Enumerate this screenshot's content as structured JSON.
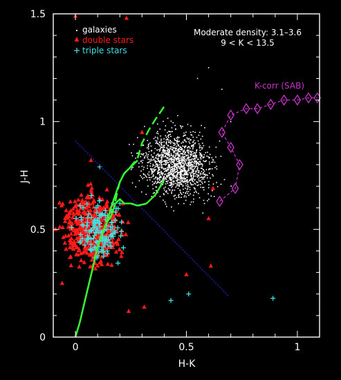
{
  "chart_data": {
    "type": "scatter",
    "xlabel": "H-K",
    "ylabel": "J-H",
    "xlim": [
      -0.1,
      1.1
    ],
    "ylim": [
      0,
      1.5
    ],
    "x_ticks": [
      0,
      0.5,
      1
    ],
    "x_tick_labels": [
      "0",
      "0.5",
      "1"
    ],
    "y_ticks": [
      0,
      0.5,
      1,
      1.5
    ],
    "y_tick_labels": [
      "0",
      "0.5",
      "1",
      "1.5"
    ],
    "annotation_lines": [
      "Moderate density: 3.1–3.6",
      "9 < K < 13.5"
    ],
    "legend_position": "top-left",
    "kcorr_label": "K-corr (SAB)",
    "colors": {
      "background": "#000000",
      "axes": "#ffffff",
      "galaxies": "#ffffff",
      "double_stars": "#ff1a1a",
      "triple_stars": "#40e0e0",
      "kcorr": "#cc33cc",
      "tracks": "#33ff33",
      "reddening": "#1a1a8c"
    },
    "series": [
      {
        "name": "galaxies",
        "marker": "dot",
        "cloud": {
          "center": [
            0.46,
            0.8
          ],
          "spread": [
            0.13,
            0.12
          ],
          "count": 1500
        },
        "values": [
          [
            0.55,
            1.2
          ],
          [
            0.6,
            1.25
          ],
          [
            0.66,
            1.15
          ],
          [
            0.7,
            1.0
          ],
          [
            0.52,
            0.98
          ]
        ]
      },
      {
        "name": "double stars",
        "marker": "triangle",
        "cloud": {
          "center": [
            0.08,
            0.5
          ],
          "spread": [
            0.1,
            0.13
          ],
          "count": 520
        },
        "values": [
          [
            0.0,
            1.49
          ],
          [
            0.23,
            1.48
          ],
          [
            0.07,
            0.82
          ],
          [
            0.3,
            0.95
          ],
          [
            0.6,
            0.55
          ],
          [
            0.61,
            0.33
          ],
          [
            0.31,
            0.14
          ],
          [
            0.24,
            0.12
          ],
          [
            -0.06,
            0.25
          ],
          [
            -0.09,
            0.5
          ],
          [
            0.5,
            0.29
          ],
          [
            0.62,
            0.69
          ]
        ]
      },
      {
        "name": "triple stars",
        "marker": "plus",
        "cloud": {
          "center": [
            0.11,
            0.5
          ],
          "spread": [
            0.08,
            0.11
          ],
          "count": 150
        },
        "values": [
          [
            0.89,
            0.18
          ],
          [
            0.51,
            0.2
          ],
          [
            0.11,
            0.79
          ],
          [
            0.43,
            0.17
          ],
          [
            0.07,
            0.43
          ],
          [
            0.14,
            0.5
          ]
        ]
      }
    ],
    "tracks": [
      {
        "style": "solid",
        "points": [
          [
            0.0,
            0.0
          ],
          [
            0.02,
            0.07
          ],
          [
            0.05,
            0.2
          ],
          [
            0.08,
            0.33
          ],
          [
            0.1,
            0.42
          ],
          [
            0.12,
            0.48
          ],
          [
            0.14,
            0.53
          ],
          [
            0.16,
            0.56
          ],
          [
            0.17,
            0.59
          ],
          [
            0.18,
            0.62
          ],
          [
            0.2,
            0.64
          ],
          [
            0.22,
            0.62
          ],
          [
            0.25,
            0.62
          ],
          [
            0.28,
            0.61
          ],
          [
            0.32,
            0.62
          ],
          [
            0.36,
            0.66
          ],
          [
            0.4,
            0.73
          ]
        ]
      },
      {
        "style": "solid",
        "points": [
          [
            0.14,
            0.53
          ],
          [
            0.16,
            0.6
          ],
          [
            0.18,
            0.66
          ],
          [
            0.2,
            0.72
          ],
          [
            0.22,
            0.76
          ],
          [
            0.26,
            0.8
          ],
          [
            0.28,
            0.82
          ]
        ]
      },
      {
        "style": "dashed",
        "points": [
          [
            0.18,
            0.63
          ],
          [
            0.19,
            0.68
          ],
          [
            0.2,
            0.72
          ],
          [
            0.22,
            0.76
          ],
          [
            0.24,
            0.78
          ],
          [
            0.28,
            0.83
          ],
          [
            0.3,
            0.9
          ],
          [
            0.33,
            0.96
          ],
          [
            0.36,
            1.01
          ],
          [
            0.4,
            1.07
          ]
        ]
      }
    ],
    "reddening_line": [
      [
        0.0,
        0.91
      ],
      [
        0.69,
        0.19
      ]
    ],
    "kcorr_points": [
      [
        0.65,
        0.63
      ],
      [
        0.72,
        0.69
      ],
      [
        0.74,
        0.8
      ],
      [
        0.7,
        0.88
      ],
      [
        0.66,
        0.95
      ],
      [
        0.7,
        1.03
      ],
      [
        0.77,
        1.06
      ],
      [
        0.82,
        1.06
      ],
      [
        0.88,
        1.08
      ],
      [
        0.94,
        1.1
      ],
      [
        1.0,
        1.1
      ],
      [
        1.05,
        1.11
      ],
      [
        1.09,
        1.11
      ]
    ]
  }
}
